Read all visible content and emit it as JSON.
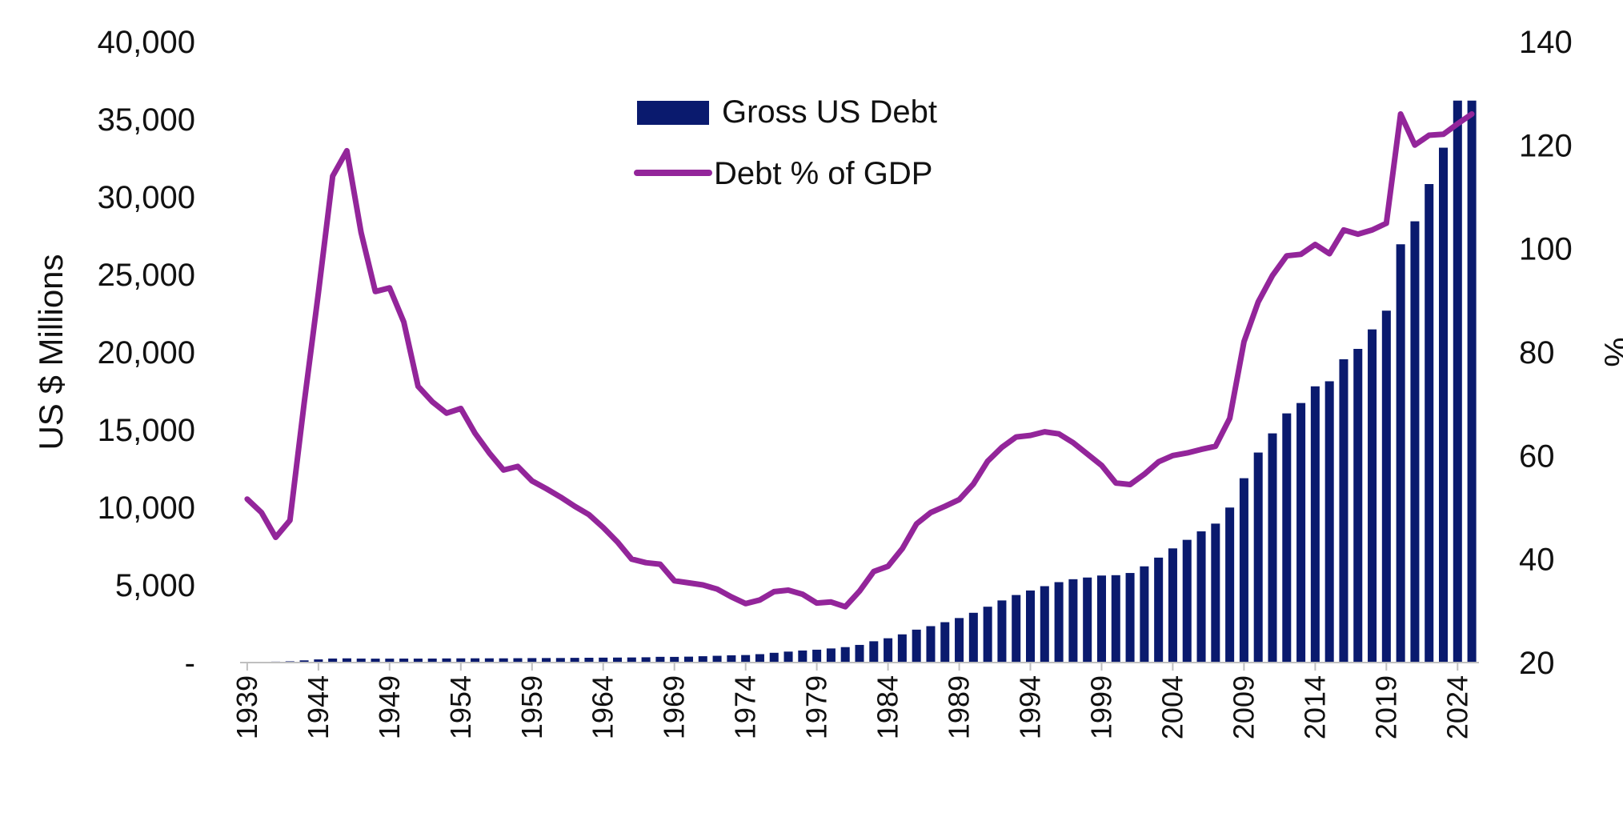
{
  "chart_data": {
    "type": "bar+line",
    "title": "",
    "ylabel": "US $ Millions",
    "y2label": "%",
    "ylim": [
      0,
      40000
    ],
    "y2lim": [
      20,
      140
    ],
    "y_ticks": [
      "-",
      "5,000",
      "10,000",
      "15,000",
      "20,000",
      "25,000",
      "30,000",
      "35,000",
      "40,000"
    ],
    "y2_ticks": [
      "20",
      "40",
      "60",
      "80",
      "100",
      "120",
      "140"
    ],
    "x_ticks": [
      "1939",
      "1944",
      "1949",
      "1954",
      "1959",
      "1964",
      "1969",
      "1974",
      "1979",
      "1984",
      "1989",
      "1994",
      "1999",
      "2004",
      "2009",
      "2014",
      "2019",
      "2024"
    ],
    "legend": {
      "position": "top-center",
      "bar_label": "Gross US Debt",
      "line_label": "Debt % of GDP"
    },
    "colors": {
      "bar": "#0a1a6e",
      "line": "#93259a"
    },
    "years": [
      1939,
      1940,
      1941,
      1942,
      1943,
      1944,
      1945,
      1946,
      1947,
      1948,
      1949,
      1950,
      1951,
      1952,
      1953,
      1954,
      1955,
      1956,
      1957,
      1958,
      1959,
      1960,
      1961,
      1962,
      1963,
      1964,
      1965,
      1966,
      1967,
      1968,
      1969,
      1970,
      1971,
      1972,
      1973,
      1974,
      1975,
      1976,
      1977,
      1978,
      1979,
      1980,
      1981,
      1982,
      1983,
      1984,
      1985,
      1986,
      1987,
      1988,
      1989,
      1990,
      1991,
      1992,
      1993,
      1994,
      1995,
      1996,
      1997,
      1998,
      1999,
      2000,
      2001,
      2002,
      2003,
      2004,
      2005,
      2006,
      2007,
      2008,
      2009,
      2010,
      2011,
      2012,
      2013,
      2014,
      2015,
      2016,
      2017,
      2018,
      2019,
      2020,
      2021,
      2022,
      2023,
      2024,
      2025
    ],
    "series": [
      {
        "name": "Gross US Debt",
        "type": "bar",
        "axis": "left",
        "values": [
          48,
          51,
          58,
          80,
          142,
          204,
          260,
          271,
          257,
          252,
          253,
          257,
          255,
          259,
          266,
          271,
          274,
          273,
          272,
          280,
          287,
          291,
          293,
          303,
          310,
          317,
          322,
          328,
          340,
          369,
          366,
          381,
          408,
          436,
          467,
          484,
          542,
          629,
          706,
          777,
          829,
          909,
          995,
          1137,
          1372,
          1565,
          1817,
          2120,
          2346,
          2601,
          2868,
          3206,
          3598,
          4002,
          4351,
          4643,
          4921,
          5181,
          5369,
          5478,
          5606,
          5629,
          5770,
          6198,
          6760,
          7355,
          7905,
          8451,
          8951,
          9986,
          11876,
          13529,
          14764,
          16051,
          16719,
          17794,
          18120,
          19539,
          20206,
          21462,
          22669,
          26945,
          28425,
          30824,
          33167,
          36200,
          36200
        ]
      },
      {
        "name": "Debt % of GDP",
        "type": "line",
        "axis": "right",
        "values": [
          51.6,
          49.0,
          44.2,
          47.5,
          70.2,
          91.5,
          114.0,
          118.9,
          103.1,
          91.7,
          92.4,
          85.8,
          73.4,
          70.4,
          68.2,
          69.1,
          64.3,
          60.5,
          57.2,
          57.9,
          55.1,
          53.6,
          52.0,
          50.2,
          48.6,
          46.1,
          43.3,
          40.0,
          39.3,
          39.0,
          35.8,
          35.4,
          35.0,
          34.2,
          32.7,
          31.4,
          32.1,
          33.7,
          34.0,
          33.2,
          31.5,
          31.7,
          30.8,
          33.8,
          37.6,
          38.6,
          42.0,
          46.8,
          49.0,
          50.2,
          51.5,
          54.5,
          58.9,
          61.6,
          63.6,
          63.9,
          64.6,
          64.2,
          62.5,
          60.3,
          58.1,
          54.7,
          54.4,
          56.4,
          58.8,
          60.0,
          60.5,
          61.2,
          61.8,
          67.2,
          82.0,
          89.7,
          94.8,
          98.6,
          98.9,
          100.8,
          99.0,
          103.6,
          102.8,
          103.6,
          104.9,
          126.0,
          120.0,
          121.9,
          122.1,
          124.1,
          126.0
        ]
      }
    ]
  }
}
